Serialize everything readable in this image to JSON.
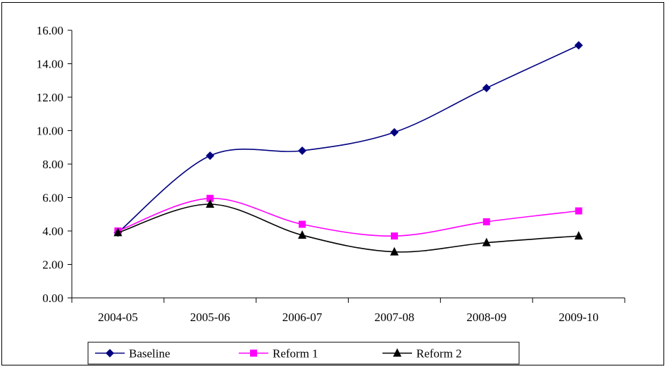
{
  "chart_data": {
    "type": "line",
    "title": "",
    "xlabel": "",
    "ylabel": "",
    "categories": [
      "2004-05",
      "2005-06",
      "2006-07",
      "2007-08",
      "2008-09",
      "2009-10"
    ],
    "ylim": [
      0,
      16
    ],
    "ytick_step": 2,
    "ytick_labels": [
      "0.00",
      "2.00",
      "4.00",
      "6.00",
      "8.00",
      "10.00",
      "12.00",
      "14.00",
      "16.00"
    ],
    "grid": false,
    "legend_position": "bottom",
    "smooth": true,
    "series": [
      {
        "name": "Baseline",
        "color": "#000080",
        "marker": "diamond",
        "values": [
          3.9,
          8.5,
          8.8,
          9.9,
          12.55,
          15.1
        ]
      },
      {
        "name": "Reform 1",
        "color": "#ff00ff",
        "marker": "square",
        "values": [
          4.0,
          5.95,
          4.4,
          3.7,
          4.55,
          5.2
        ]
      },
      {
        "name": "Reform 2",
        "color": "#000000",
        "marker": "triangle",
        "values": [
          3.9,
          5.6,
          3.75,
          2.75,
          3.3,
          3.7
        ]
      }
    ]
  }
}
